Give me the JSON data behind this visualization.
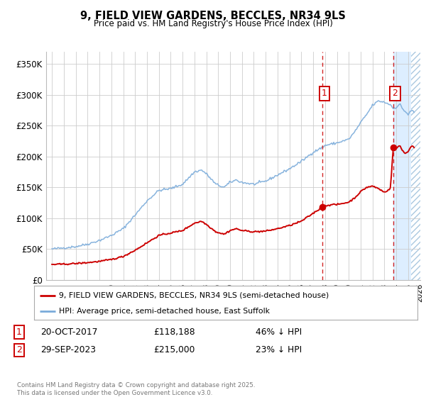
{
  "title": "9, FIELD VIEW GARDENS, BECCLES, NR34 9LS",
  "subtitle": "Price paid vs. HM Land Registry's House Price Index (HPI)",
  "red_label": "9, FIELD VIEW GARDENS, BECCLES, NR34 9LS (semi-detached house)",
  "blue_label": "HPI: Average price, semi-detached house, East Suffolk",
  "sale1_date": "20-OCT-2017",
  "sale1_price": 118188,
  "sale1_year": 2017.8,
  "sale1_pct": "46% ↓ HPI",
  "sale2_date": "29-SEP-2023",
  "sale2_price": 215000,
  "sale2_year": 2023.75,
  "sale2_pct": "23% ↓ HPI",
  "footer": "Contains HM Land Registry data © Crown copyright and database right 2025.\nThis data is licensed under the Open Government Licence v3.0.",
  "xlim": [
    1994.5,
    2026.0
  ],
  "ylim": [
    0,
    370000
  ],
  "yticks": [
    0,
    50000,
    100000,
    150000,
    200000,
    250000,
    300000,
    350000
  ],
  "ytick_labels": [
    "£0",
    "£50K",
    "£100K",
    "£150K",
    "£200K",
    "£250K",
    "£300K",
    "£350K"
  ],
  "background_color": "#ffffff",
  "grid_color": "#cccccc",
  "red_color": "#cc0000",
  "blue_color": "#7aabda",
  "shade_color": "#ddeeff",
  "hatch_color": "#aac4dd"
}
